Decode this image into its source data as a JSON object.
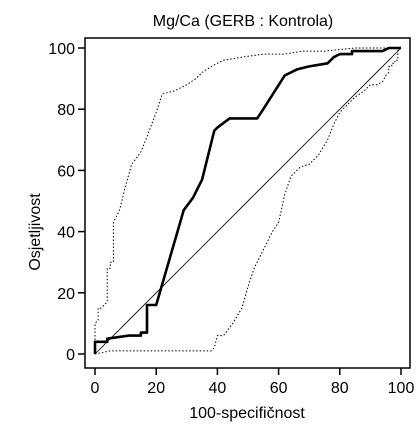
{
  "chart_data": {
    "type": "line",
    "title": "Mg/Ca (GERB : Kontrola)",
    "xlabel": "100-specifičnost",
    "ylabel": "Osjetljivost",
    "xlim": [
      0,
      100
    ],
    "ylim": [
      0,
      100
    ],
    "xticks": [
      "0",
      "20",
      "40",
      "60",
      "80",
      "100"
    ],
    "yticks": [
      "0",
      "20",
      "40",
      "60",
      "80",
      "100"
    ],
    "grid": false,
    "legend": "none",
    "series": [
      {
        "role": "roc",
        "style": "solid-bold",
        "points": [
          [
            0,
            0
          ],
          [
            0,
            4
          ],
          [
            4,
            4
          ],
          [
            4,
            5
          ],
          [
            11,
            6
          ],
          [
            15,
            6
          ],
          [
            15,
            7
          ],
          [
            17,
            7
          ],
          [
            17,
            16
          ],
          [
            20,
            16
          ],
          [
            29,
            47
          ],
          [
            32,
            51
          ],
          [
            35,
            57
          ],
          [
            39,
            73
          ],
          [
            40,
            74
          ],
          [
            44,
            77
          ],
          [
            53,
            77
          ],
          [
            55,
            80
          ],
          [
            62,
            91
          ],
          [
            66,
            93
          ],
          [
            70,
            94
          ],
          [
            76,
            95
          ],
          [
            78,
            97
          ],
          [
            80,
            98
          ],
          [
            84,
            98
          ],
          [
            84,
            99
          ],
          [
            94,
            99
          ],
          [
            96,
            100
          ],
          [
            100,
            100
          ]
        ]
      },
      {
        "role": "ci-upper",
        "style": "dotted",
        "points": [
          [
            0,
            0
          ],
          [
            0,
            10
          ],
          [
            1,
            11
          ],
          [
            1,
            15
          ],
          [
            2,
            15
          ],
          [
            3,
            16
          ],
          [
            4,
            17
          ],
          [
            4,
            28
          ],
          [
            5,
            28
          ],
          [
            5,
            30
          ],
          [
            6,
            30
          ],
          [
            6,
            43
          ],
          [
            8,
            47
          ],
          [
            10,
            55
          ],
          [
            12,
            62
          ],
          [
            15,
            66
          ],
          [
            17,
            71
          ],
          [
            20,
            79
          ],
          [
            22,
            85
          ],
          [
            26,
            86
          ],
          [
            28,
            87
          ],
          [
            30,
            88
          ],
          [
            33,
            90
          ],
          [
            35,
            92
          ],
          [
            38,
            94
          ],
          [
            42,
            96
          ],
          [
            48,
            97
          ],
          [
            55,
            98
          ],
          [
            62,
            98
          ],
          [
            68,
            99
          ],
          [
            75,
            99
          ],
          [
            85,
            100
          ],
          [
            100,
            100
          ]
        ]
      },
      {
        "role": "ci-lower",
        "style": "dotted",
        "points": [
          [
            0,
            0
          ],
          [
            5,
            1
          ],
          [
            20,
            1
          ],
          [
            38,
            1
          ],
          [
            39,
            2
          ],
          [
            40,
            6
          ],
          [
            42,
            6
          ],
          [
            45,
            10
          ],
          [
            48,
            15
          ],
          [
            50,
            22
          ],
          [
            52,
            28
          ],
          [
            54,
            32
          ],
          [
            56,
            36
          ],
          [
            58,
            40
          ],
          [
            60,
            43
          ],
          [
            62,
            52
          ],
          [
            64,
            58
          ],
          [
            67,
            61
          ],
          [
            70,
            62
          ],
          [
            73,
            65
          ],
          [
            76,
            70
          ],
          [
            78,
            75
          ],
          [
            80,
            79
          ],
          [
            83,
            82
          ],
          [
            85,
            84
          ],
          [
            88,
            86
          ],
          [
            90,
            88
          ],
          [
            92,
            88
          ],
          [
            94,
            89
          ],
          [
            95,
            91
          ],
          [
            96,
            92
          ],
          [
            96,
            94
          ],
          [
            97,
            94
          ],
          [
            97,
            95
          ],
          [
            98,
            95
          ],
          [
            98,
            96
          ],
          [
            99,
            96
          ],
          [
            99,
            100
          ],
          [
            100,
            100
          ]
        ]
      },
      {
        "role": "reference-diagonal",
        "style": "thin",
        "points": [
          [
            0,
            0
          ],
          [
            100,
            100
          ]
        ]
      }
    ]
  }
}
